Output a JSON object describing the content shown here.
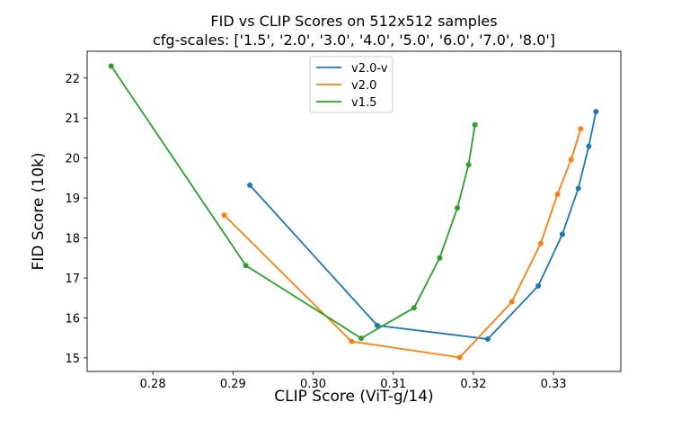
{
  "chart_data": {
    "type": "line",
    "title": "FID vs CLIP Scores on 512x512 samples",
    "subtitle": "cfg-scales: ['1.5', '2.0', '3.0', '4.0', '5.0', '6.0', '7.0', '8.0']",
    "xlabel": "CLIP Score (ViT-g/14)",
    "ylabel": "FID Score (10k)",
    "xlim": [
      0.2718,
      0.3384
    ],
    "ylim": [
      14.66,
      22.67
    ],
    "xticks": [
      "0.28",
      "0.29",
      "0.30",
      "0.31",
      "0.32",
      "0.33"
    ],
    "yticks": [
      "15",
      "16",
      "17",
      "18",
      "19",
      "20",
      "21",
      "22"
    ],
    "grid": false,
    "legend_placement": "upper-center",
    "markers": true,
    "series": [
      {
        "name": "v2.0-v",
        "color": "#1f77b4",
        "x": [
          0.2921,
          0.308,
          0.3218,
          0.3281,
          0.3311,
          0.3331,
          0.3344,
          0.3353
        ],
        "y": [
          19.32,
          15.81,
          15.47,
          16.8,
          18.09,
          19.24,
          20.29,
          21.16
        ]
      },
      {
        "name": "v2.0",
        "color": "#ff7f0e",
        "x": [
          0.2889,
          0.3048,
          0.3183,
          0.3248,
          0.3284,
          0.3305,
          0.3322,
          0.3334
        ],
        "y": [
          18.57,
          15.41,
          15.01,
          16.4,
          17.86,
          19.09,
          19.96,
          20.73
        ]
      },
      {
        "name": "v1.5",
        "color": "#2ca02c",
        "x": [
          0.2748,
          0.2916,
          0.306,
          0.3126,
          0.3158,
          0.318,
          0.3194,
          0.3202
        ],
        "y": [
          22.3,
          17.31,
          15.49,
          16.25,
          17.5,
          18.75,
          19.83,
          20.83
        ]
      }
    ]
  }
}
